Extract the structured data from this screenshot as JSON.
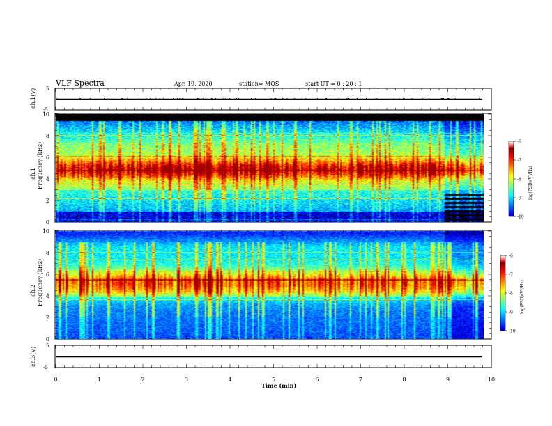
{
  "header": {
    "title": "VLF Spectra",
    "date": "Apr. 19, 2020",
    "station": "station= MOS",
    "start": "start  UT =   0 : 20 : 1"
  },
  "chart_data": [
    {
      "type": "line",
      "panel": "ch1-waveform",
      "ylabel": "ch.1(V)",
      "ylim": [
        -5,
        5
      ],
      "yticks": [
        "5",
        "-5"
      ],
      "xlim": [
        0,
        10
      ],
      "series": [
        {
          "values": [
            0,
            0
          ]
        }
      ]
    },
    {
      "type": "heatmap",
      "panel": "ch1-spectrogram",
      "ylabel": "ch.1",
      "ylabel2": "Frequency  (kHz)",
      "ylim": [
        0,
        10
      ],
      "yticks": [
        "0",
        "2",
        "4",
        "6",
        "8",
        "10"
      ],
      "xlim": [
        0,
        9.83
      ],
      "colorbar": {
        "label": "log(PSD)(V²/Hz)",
        "ticks": [
          "-6",
          "-7",
          "-8",
          "-9",
          "-10"
        ],
        "range": [
          -10,
          -6
        ]
      },
      "emission_band_khz": [
        4.0,
        6.0
      ]
    },
    {
      "type": "heatmap",
      "panel": "ch2-spectrogram",
      "ylabel": "ch.2",
      "ylabel2": "Frequency  (kHz)",
      "ylim": [
        0,
        10
      ],
      "yticks": [
        "0",
        "2",
        "4",
        "6",
        "8",
        "10"
      ],
      "xlim": [
        0,
        9.83
      ],
      "colorbar": {
        "label": "log(PSD)(V²/Hz)",
        "ticks": [
          "-6",
          "-7",
          "-8",
          "-9",
          "-10"
        ],
        "range": [
          -10,
          -6
        ]
      },
      "emission_band_khz": [
        4.5,
        5.5
      ]
    },
    {
      "type": "line",
      "panel": "ch3-waveform",
      "ylabel": "ch.3(V)",
      "ylim": [
        -5,
        5
      ],
      "yticks": [
        "5",
        "-5"
      ],
      "xlim": [
        0,
        10
      ],
      "series": [
        {
          "values": [
            0,
            0
          ]
        }
      ]
    }
  ],
  "xaxis": {
    "label": "Time  (min)",
    "ticks": [
      "0",
      "1",
      "2",
      "3",
      "4",
      "5",
      "6",
      "7",
      "8",
      "9",
      "10"
    ]
  }
}
